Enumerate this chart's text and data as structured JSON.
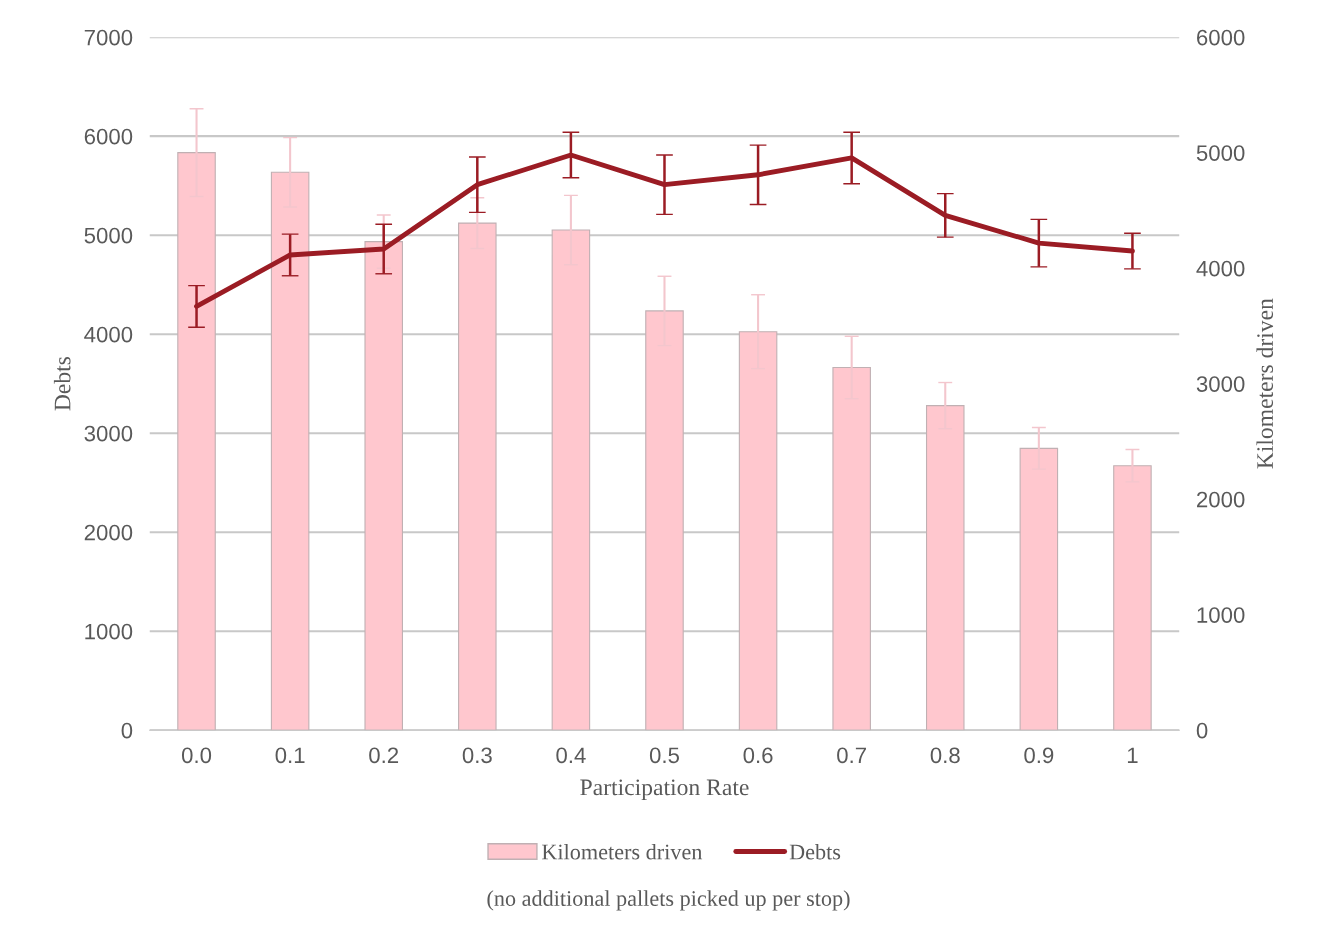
{
  "chart_data": {
    "type": "bar",
    "xlabel": "Participation Rate",
    "ylabel": "Debts",
    "y2label": "Kilometers driven",
    "categories": [
      "0.0",
      "0.1",
      "0.2",
      "0.3",
      "0.4",
      "0.5",
      "0.6",
      "0.7",
      "0.8",
      "0.9",
      "1"
    ],
    "series": [
      {
        "name": "Kilometers driven",
        "axis": "y2",
        "color": "#ffc7ce",
        "values": [
          5000,
          4830,
          4230,
          4390,
          4330,
          3630,
          3450,
          3140,
          2810,
          2440,
          2290
        ],
        "errors": [
          380,
          300,
          230,
          220,
          300,
          300,
          320,
          270,
          200,
          180,
          140
        ]
      },
      {
        "name": "Debts",
        "type": "line",
        "color": "#9b1c24",
        "values": [
          4280,
          4800,
          4860,
          5510,
          5810,
          5510,
          5610,
          5780,
          5200,
          4920,
          4840
        ],
        "errors": [
          210,
          210,
          250,
          280,
          230,
          300,
          300,
          260,
          220,
          240,
          180
        ]
      }
    ],
    "ylim": [
      0,
      7000
    ],
    "yticks": [
      0,
      1000,
      2000,
      3000,
      4000,
      5000,
      6000,
      7000
    ],
    "y2lim": [
      0,
      6000
    ],
    "y2ticks": [
      0,
      1000,
      2000,
      3000,
      4000,
      5000,
      6000
    ],
    "grid": "y",
    "legend": "bottom",
    "annotations": [
      "(no additional pallets picked up per stop)"
    ]
  }
}
